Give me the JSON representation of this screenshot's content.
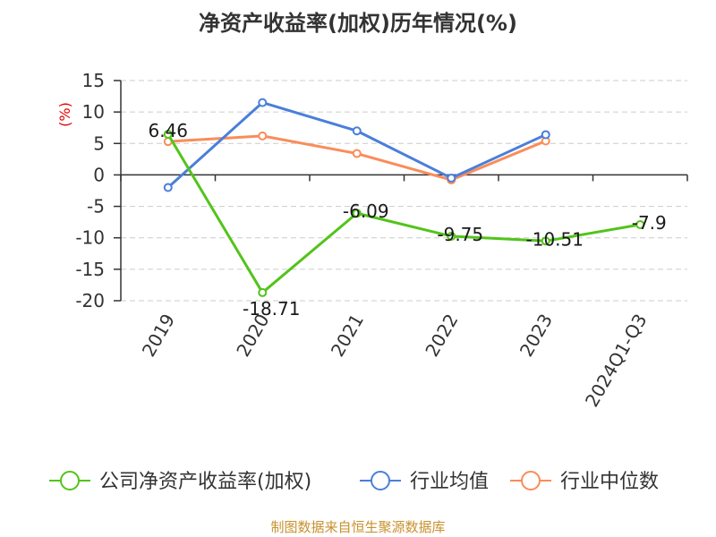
{
  "chart_data": {
    "type": "line",
    "title": "净资产收益率(加权)历年情况(%)",
    "ylabel": "(%)",
    "xlabel": "",
    "categories": [
      "2019",
      "2020",
      "2021",
      "2022",
      "2023",
      "2024Q1-Q3"
    ],
    "ylim": [
      -20,
      15
    ],
    "yticks": [
      15,
      10,
      5,
      0,
      -5,
      -10,
      -15,
      -20
    ],
    "grid": true,
    "legend_position": "bottom",
    "series": [
      {
        "name": "公司净资产收益率(加权)",
        "color": "#52c41a",
        "values": [
          6.46,
          -18.71,
          -6.09,
          -9.75,
          -10.51,
          -7.9
        ],
        "data_labels": [
          "6.46",
          "-18.71",
          "-6.09",
          "-9.75",
          "-10.51",
          "-7.9"
        ]
      },
      {
        "name": "行业均值",
        "color": "#4a7fd9",
        "values": [
          -2.0,
          11.5,
          7.0,
          -0.5,
          6.4,
          null
        ],
        "data_labels": null
      },
      {
        "name": "行业中位数",
        "color": "#fa8c5a",
        "values": [
          5.3,
          6.2,
          3.4,
          -0.8,
          5.4,
          null
        ],
        "data_labels": null
      }
    ]
  },
  "source": "制图数据来自恒生聚源数据库"
}
